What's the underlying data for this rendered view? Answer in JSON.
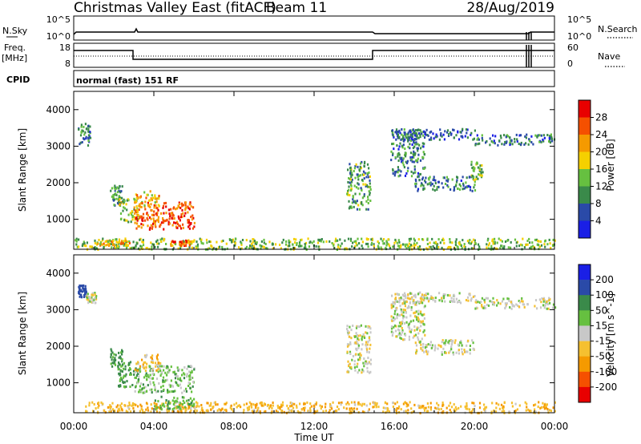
{
  "header": {
    "title": "Christmas Valley East (fitACF)",
    "beam": "Beam 11",
    "date": "28/Aug/2019"
  },
  "strip1": {
    "label": "N.Sky",
    "right_label": "N.Search",
    "left_ticks": [
      "10^5",
      "10^0"
    ],
    "right_ticks": [
      "10^5",
      "10^0"
    ]
  },
  "strip2": {
    "label_line1": "Freq.",
    "label_line2": "[MHz]",
    "right_label": "Nave",
    "left_ticks": [
      "18",
      "8"
    ],
    "right_ticks": [
      "60",
      "0"
    ]
  },
  "strip3": {
    "label": "CPID",
    "mode_text": "normal (fast) 151 RF"
  },
  "chart_data": [
    {
      "type": "heatmap",
      "title": "",
      "ylabel": "Slant Range [km]",
      "ylim": [
        180,
        4500
      ],
      "yticks": [
        1000,
        2000,
        3000,
        4000
      ],
      "colorbar": {
        "label": "Power [dB]",
        "ticks": [
          "28",
          "24",
          "20",
          "16",
          "12",
          "8",
          "4"
        ],
        "levels": [
          {
            "max": 4,
            "color": "#1a1fe6"
          },
          {
            "max": 8,
            "color": "#2a4aa8"
          },
          {
            "max": 12,
            "color": "#3a8a4a"
          },
          {
            "max": 16,
            "color": "#66c040"
          },
          {
            "max": 20,
            "color": "#f5d000"
          },
          {
            "max": 24,
            "color": "#f59a00"
          },
          {
            "max": 28,
            "color": "#f55000"
          },
          {
            "max": 32,
            "color": "#e80000"
          }
        ]
      },
      "regions": [
        {
          "t": [
            0.2,
            0.8
          ],
          "r": [
            3050,
            3700
          ],
          "v": 9
        },
        {
          "t": [
            1.8,
            2.4
          ],
          "r": [
            1400,
            1950
          ],
          "v": 10
        },
        {
          "t": [
            2.2,
            3.2
          ],
          "r": [
            900,
            1600
          ],
          "v": 15
        },
        {
          "t": [
            3.0,
            6.0
          ],
          "r": [
            750,
            1500
          ],
          "v": 26
        },
        {
          "t": [
            3.0,
            4.3
          ],
          "r": [
            1350,
            1800
          ],
          "v": 20
        },
        {
          "t": [
            0.0,
            24.0
          ],
          "r": [
            200,
            500
          ],
          "v": 14
        },
        {
          "t": [
            1.0,
            2.8
          ],
          "r": [
            300,
            450
          ],
          "v": 20
        },
        {
          "t": [
            4.8,
            5.8
          ],
          "r": [
            300,
            450
          ],
          "v": 25
        },
        {
          "t": [
            13.6,
            14.8
          ],
          "r": [
            1300,
            2600
          ],
          "v": 11
        },
        {
          "t": [
            15.8,
            17.5
          ],
          "r": [
            2200,
            3500
          ],
          "v": 9
        },
        {
          "t": [
            17.0,
            20.0
          ],
          "r": [
            1800,
            2200
          ],
          "v": 9
        },
        {
          "t": [
            19.8,
            20.4
          ],
          "r": [
            2100,
            2600
          ],
          "v": 14
        },
        {
          "t": [
            20.0,
            24.0
          ],
          "r": [
            3050,
            3350
          ],
          "v": 8
        },
        {
          "t": [
            16.0,
            20.0
          ],
          "r": [
            3200,
            3500
          ],
          "v": 6
        }
      ]
    },
    {
      "type": "heatmap",
      "title": "",
      "xlabel": "Time UT",
      "ylabel": "Slant Range [km]",
      "xlim": [
        0,
        24
      ],
      "xticks": [
        "00:00",
        "04:00",
        "08:00",
        "12:00",
        "16:00",
        "20:00",
        "00:00"
      ],
      "ylim": [
        180,
        4500
      ],
      "yticks": [
        1000,
        2000,
        3000,
        4000
      ],
      "colorbar": {
        "label": "Velocity [m s^-1]",
        "ticks": [
          "200",
          "100",
          "50",
          "15",
          "-15",
          "-50",
          "-100",
          "-200"
        ],
        "levels": [
          {
            "max": -200,
            "color": "#e80000"
          },
          {
            "max": -100,
            "color": "#f55000"
          },
          {
            "max": -50,
            "color": "#f59a00"
          },
          {
            "max": -15,
            "color": "#f5c030"
          },
          {
            "max": 15,
            "color": "#c8c8c8"
          },
          {
            "max": 50,
            "color": "#66c040"
          },
          {
            "max": 100,
            "color": "#3a8a4a"
          },
          {
            "max": 200,
            "color": "#2a4aa8"
          },
          {
            "max": 300,
            "color": "#1a1fe6"
          }
        ]
      },
      "regions": [
        {
          "t": [
            0.2,
            0.6
          ],
          "r": [
            3350,
            3700
          ],
          "v": 150
        },
        {
          "t": [
            0.6,
            1.1
          ],
          "r": [
            3200,
            3500
          ],
          "v": 0
        },
        {
          "t": [
            1.8,
            2.4
          ],
          "r": [
            1400,
            1950
          ],
          "v": 70
        },
        {
          "t": [
            2.2,
            3.2
          ],
          "r": [
            900,
            1600
          ],
          "v": 60
        },
        {
          "t": [
            3.0,
            6.0
          ],
          "r": [
            750,
            1500
          ],
          "v": 30
        },
        {
          "t": [
            3.0,
            4.3
          ],
          "r": [
            1350,
            1800
          ],
          "v": -30
        },
        {
          "t": [
            0.5,
            24.0
          ],
          "r": [
            200,
            500
          ],
          "v": -40
        },
        {
          "t": [
            4.0,
            6.0
          ],
          "r": [
            300,
            650
          ],
          "v": 40
        },
        {
          "t": [
            13.6,
            14.8
          ],
          "r": [
            1300,
            2600
          ],
          "v": 0
        },
        {
          "t": [
            15.8,
            17.5
          ],
          "r": [
            2200,
            3500
          ],
          "v": 0
        },
        {
          "t": [
            17.0,
            20.0
          ],
          "r": [
            1800,
            2200
          ],
          "v": 0
        },
        {
          "t": [
            20.0,
            24.0
          ],
          "r": [
            3050,
            3350
          ],
          "v": 0
        },
        {
          "t": [
            16.0,
            20.0
          ],
          "r": [
            3200,
            3500
          ],
          "v": 0
        }
      ]
    }
  ]
}
